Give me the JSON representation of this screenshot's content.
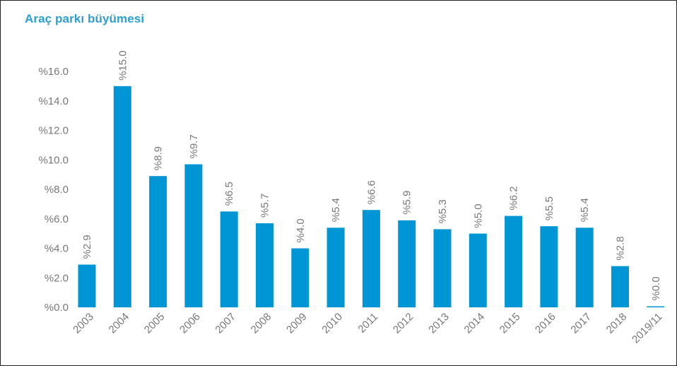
{
  "chart_data": {
    "type": "bar",
    "title": "Araç parkı büyümesi",
    "categories": [
      "2003",
      "2004",
      "2005",
      "2006",
      "2007",
      "2008",
      "2009",
      "2010",
      "2011",
      "2012",
      "2013",
      "2014",
      "2015",
      "2016",
      "2017",
      "2018",
      "2019/11"
    ],
    "values": [
      2.9,
      15.0,
      8.9,
      9.7,
      6.5,
      5.7,
      4.0,
      5.4,
      6.6,
      5.9,
      5.3,
      5.0,
      6.2,
      5.5,
      5.4,
      2.8,
      0.0
    ],
    "data_labels": [
      "%2.9",
      "%15.0",
      "%8.9",
      "%9.7",
      "%6.5",
      "%5.7",
      "%4.0",
      "%5.4",
      "%6.6",
      "%5.9",
      "%5.3",
      "%5.0",
      "%6.2",
      "%5.5",
      "%5.4",
      "%2.8",
      "%0.0"
    ],
    "y_ticks": [
      0,
      2,
      4,
      6,
      8,
      10,
      12,
      14,
      16
    ],
    "y_tick_labels": [
      "%0.0",
      "%2.0",
      "%4.0",
      "%6.0",
      "%8.0",
      "%10.0",
      "%12.0",
      "%14.0",
      "%16.0"
    ],
    "ylim": [
      0,
      16
    ],
    "xlabel": "",
    "ylabel": "",
    "grid": false,
    "legend": "none",
    "bar_color": "#0096d6",
    "title_color": "#2a9fd6",
    "text_color": "#777777"
  }
}
